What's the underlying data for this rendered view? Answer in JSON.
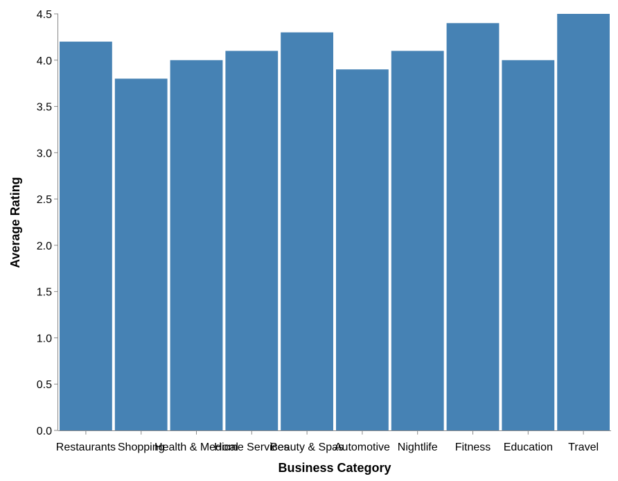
{
  "chart_data": {
    "type": "bar",
    "categories": [
      "Restaurants",
      "Shopping",
      "Health & Medical",
      "Home Services",
      "Beauty & Spas",
      "Automotive",
      "Nightlife",
      "Fitness",
      "Education",
      "Travel"
    ],
    "values": [
      4.2,
      3.8,
      4.0,
      4.1,
      4.3,
      3.9,
      4.1,
      4.4,
      4.0,
      4.5
    ],
    "xlabel": "Business Category",
    "ylabel": "Average Rating",
    "ylim": [
      0,
      4.5
    ],
    "yticks": [
      "0.0",
      "0.5",
      "1.0",
      "1.5",
      "2.0",
      "2.5",
      "3.0",
      "3.5",
      "4.0",
      "4.5"
    ],
    "grid": false,
    "legend": "none",
    "bar_color": "#4682b4",
    "axis_color": "#888888"
  }
}
